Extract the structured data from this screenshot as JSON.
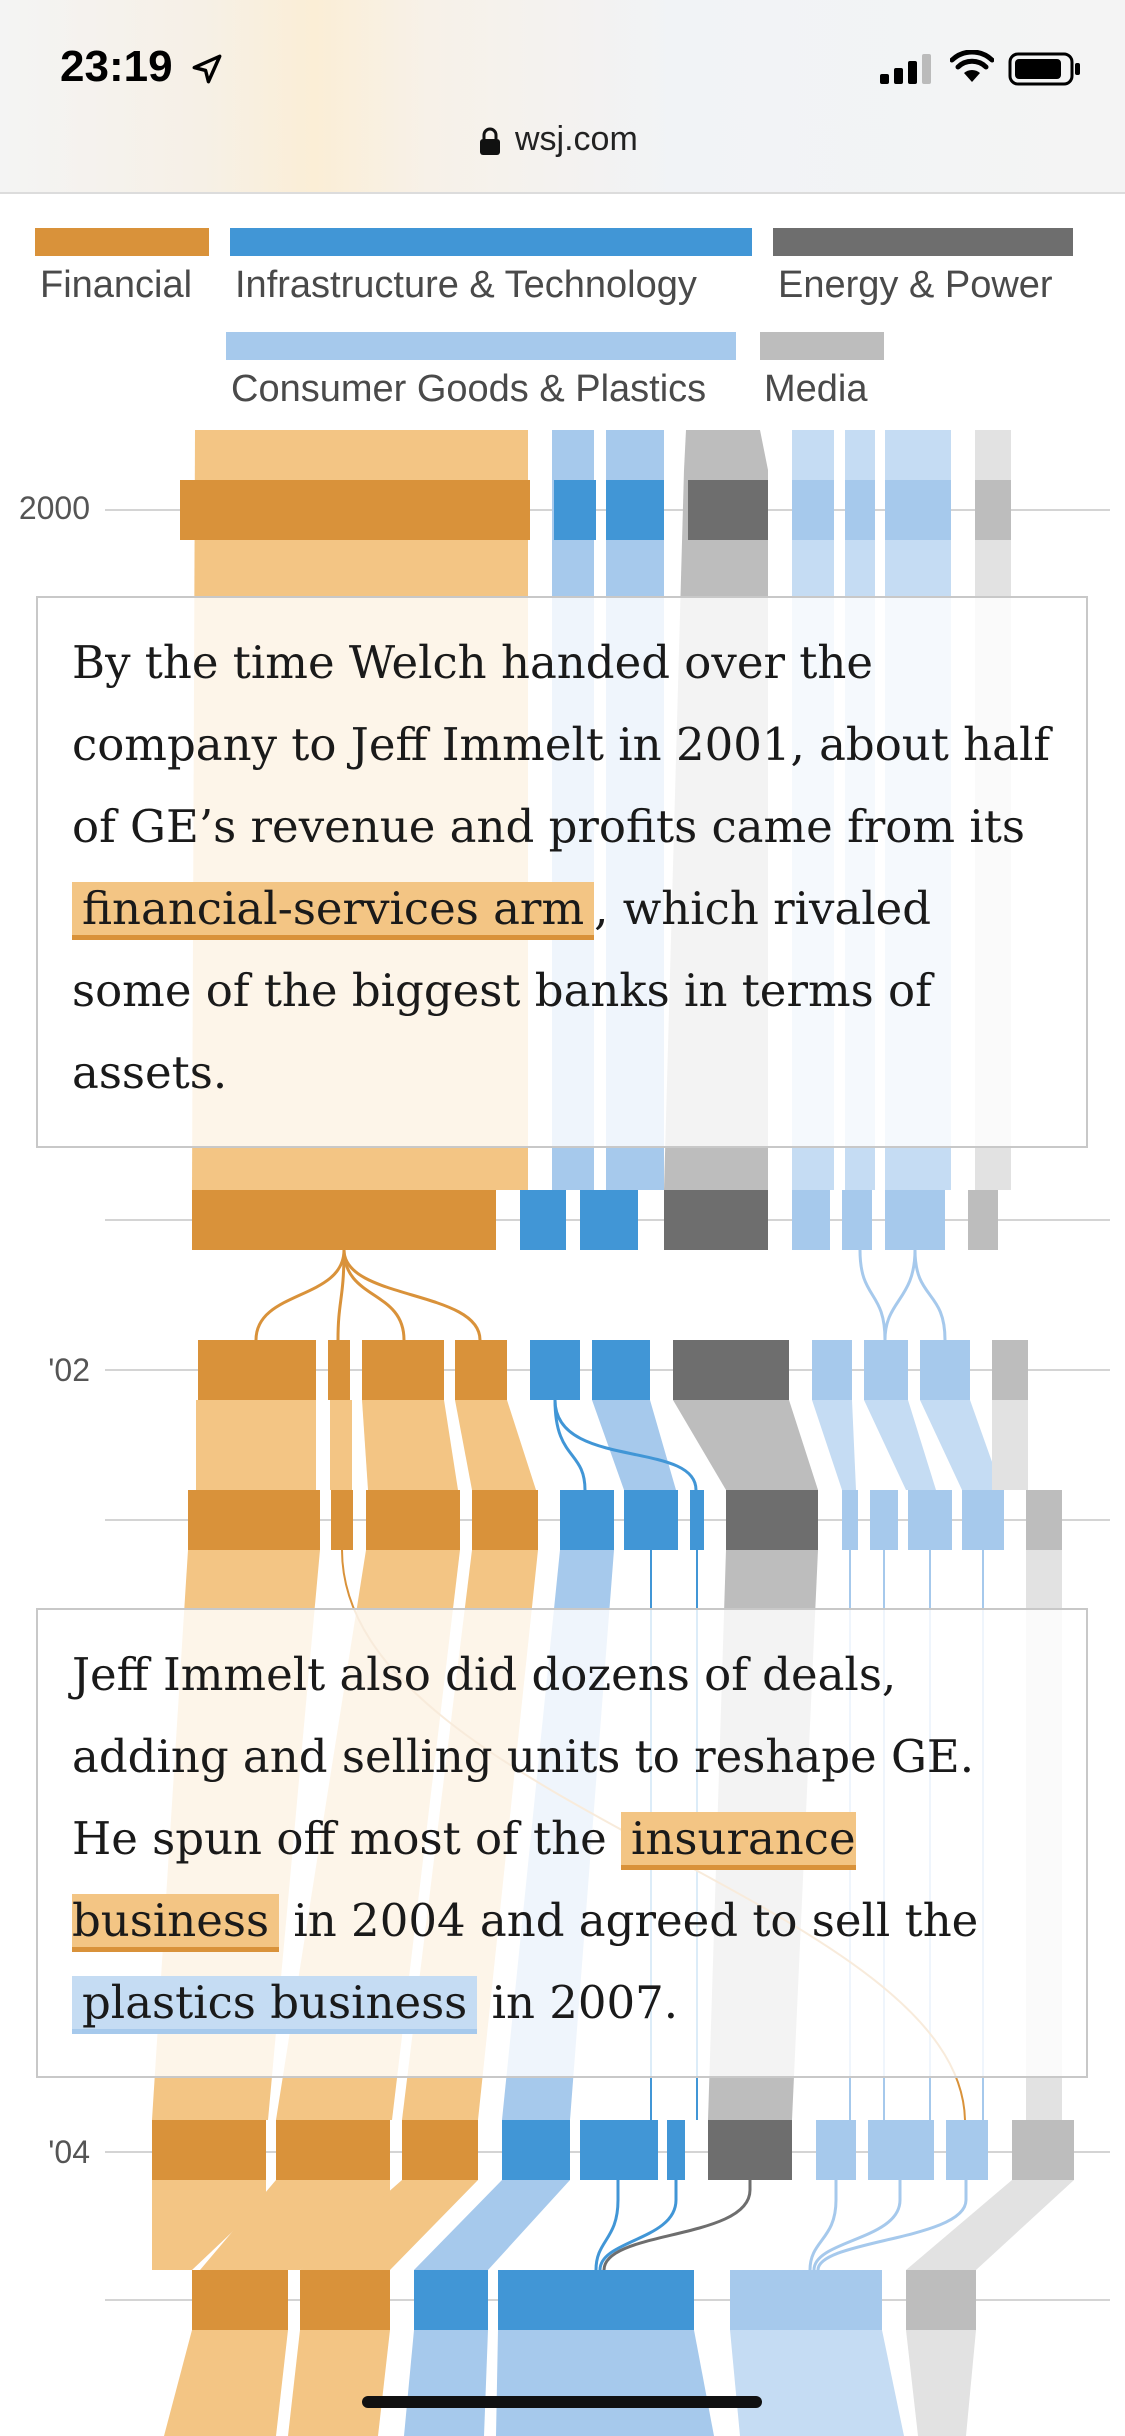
{
  "status_bar": {
    "time": "23:19",
    "location_icon": "location-arrow-icon",
    "signal_icon": "cellular-signal-icon",
    "wifi_icon": "wifi-icon",
    "battery_icon": "battery-icon"
  },
  "browser": {
    "url": "wsj.com",
    "lock_icon": "lock-icon"
  },
  "legend": {
    "items": [
      {
        "label": "Financial",
        "color": "#d9923a"
      },
      {
        "label": "Infrastructure & Technology",
        "color": "#4196d6"
      },
      {
        "label": "Energy & Power",
        "color": "#6e6e6e"
      },
      {
        "label": "Consumer Goods & Plastics",
        "color": "#a6c9ec"
      },
      {
        "label": "Media",
        "color": "#bdbdbd"
      }
    ]
  },
  "years": [
    "2000",
    "'02",
    "'04"
  ],
  "notes": {
    "first": {
      "before": "By the time Welch handed over the company to Jeff Immelt in 2001, about half of GE’s revenue and profits came from its ",
      "highlight": "financial-services arm",
      "after": ", which rivaled some of the biggest banks in terms of assets."
    },
    "second": {
      "before": "Jeff Immelt also did dozens of deals, adding and selling units to reshape GE. He spun off most of the ",
      "highlight1": "insurance business",
      "middle": " in 2004 and agreed to sell the ",
      "highlight2": "plastics business",
      "after": " in 2007."
    }
  }
}
